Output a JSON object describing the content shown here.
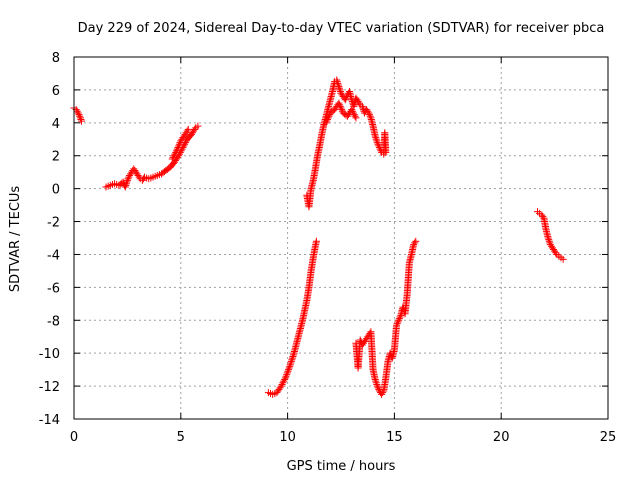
{
  "chart_data": {
    "type": "scatter",
    "title": "Day 229 of 2024, Sidereal Day-to-day VTEC variation (SDTVAR) for receiver pbca",
    "xlabel": "GPS time / hours",
    "ylabel": "SDTVAR / TECUs",
    "xlim": [
      0,
      25
    ],
    "ylim": [
      -14,
      8
    ],
    "xticks": [
      0,
      5,
      10,
      15,
      20,
      25
    ],
    "yticks": [
      -14,
      -12,
      -10,
      -8,
      -6,
      -4,
      -2,
      0,
      2,
      4,
      6,
      8
    ],
    "grid": true,
    "marker": "+",
    "marker_color": "#ff0000",
    "series": [
      {
        "name": "seg-0-1",
        "points": [
          [
            0.0,
            4.9
          ],
          [
            0.1,
            4.8
          ],
          [
            0.2,
            4.6
          ],
          [
            0.3,
            4.3
          ],
          [
            0.35,
            4.1
          ]
        ]
      },
      {
        "name": "seg-1.5-6",
        "points": [
          [
            1.5,
            0.1
          ],
          [
            1.7,
            0.2
          ],
          [
            1.9,
            0.3
          ],
          [
            2.1,
            0.2
          ],
          [
            2.3,
            0.4
          ],
          [
            2.4,
            0.1
          ],
          [
            2.5,
            0.5
          ],
          [
            2.6,
            0.8
          ],
          [
            2.7,
            1.0
          ],
          [
            2.8,
            1.2
          ],
          [
            2.9,
            1.0
          ],
          [
            3.0,
            0.8
          ],
          [
            3.1,
            0.6
          ],
          [
            3.2,
            0.5
          ],
          [
            3.3,
            0.7
          ],
          [
            3.5,
            0.6
          ],
          [
            3.7,
            0.7
          ],
          [
            3.9,
            0.8
          ],
          [
            4.1,
            0.9
          ],
          [
            4.3,
            1.1
          ],
          [
            4.5,
            1.3
          ],
          [
            4.7,
            1.6
          ],
          [
            4.9,
            2.0
          ],
          [
            5.1,
            2.5
          ],
          [
            5.3,
            3.0
          ],
          [
            5.5,
            3.3
          ],
          [
            5.7,
            3.7
          ],
          [
            5.8,
            3.8
          ]
        ]
      },
      {
        "name": "seg-1.5-6-upper",
        "points": [
          [
            4.6,
            1.8
          ],
          [
            4.8,
            2.3
          ],
          [
            5.0,
            2.9
          ],
          [
            5.2,
            3.3
          ],
          [
            5.35,
            3.6
          ]
        ]
      },
      {
        "name": "seg-9-11.5",
        "points": [
          [
            9.1,
            -12.4
          ],
          [
            9.3,
            -12.5
          ],
          [
            9.5,
            -12.4
          ],
          [
            9.7,
            -12.0
          ],
          [
            9.9,
            -11.5
          ],
          [
            10.1,
            -10.8
          ],
          [
            10.3,
            -10.0
          ],
          [
            10.5,
            -9.0
          ],
          [
            10.7,
            -8.0
          ],
          [
            10.9,
            -6.8
          ],
          [
            11.0,
            -6.0
          ],
          [
            11.1,
            -5.0
          ],
          [
            11.2,
            -4.2
          ],
          [
            11.3,
            -3.5
          ],
          [
            11.35,
            -3.2
          ]
        ]
      },
      {
        "name": "seg-10.8-14.6-upper",
        "points": [
          [
            10.9,
            -0.4
          ],
          [
            11.0,
            -1.1
          ],
          [
            11.1,
            0.0
          ],
          [
            11.2,
            0.5
          ],
          [
            11.3,
            1.2
          ],
          [
            11.4,
            2.0
          ],
          [
            11.5,
            2.6
          ],
          [
            11.6,
            3.3
          ],
          [
            11.7,
            3.9
          ],
          [
            11.8,
            4.4
          ],
          [
            11.9,
            4.9
          ],
          [
            12.0,
            5.4
          ],
          [
            12.1,
            5.9
          ],
          [
            12.2,
            6.5
          ],
          [
            12.3,
            6.6
          ],
          [
            12.4,
            6.2
          ],
          [
            12.5,
            5.8
          ],
          [
            12.6,
            5.6
          ],
          [
            12.7,
            5.4
          ],
          [
            12.8,
            5.7
          ],
          [
            12.9,
            5.9
          ],
          [
            13.0,
            5.4
          ],
          [
            13.1,
            5.0
          ],
          [
            13.2,
            5.5
          ],
          [
            13.3,
            5.3
          ],
          [
            13.4,
            5.1
          ],
          [
            13.5,
            5.0
          ],
          [
            13.6,
            4.6
          ],
          [
            13.7,
            4.8
          ],
          [
            13.8,
            4.6
          ],
          [
            13.9,
            4.3
          ],
          [
            14.0,
            3.8
          ],
          [
            14.1,
            3.2
          ],
          [
            14.2,
            2.8
          ],
          [
            14.3,
            2.5
          ],
          [
            14.4,
            2.2
          ],
          [
            14.5,
            2.1
          ],
          [
            14.55,
            3.4
          ],
          [
            14.6,
            2.2
          ]
        ]
      },
      {
        "name": "seg-11.8-13.2-lower",
        "points": [
          [
            11.8,
            4.0
          ],
          [
            12.0,
            4.6
          ],
          [
            12.2,
            4.8
          ],
          [
            12.4,
            5.2
          ],
          [
            12.6,
            4.6
          ],
          [
            12.8,
            4.4
          ],
          [
            13.0,
            4.8
          ],
          [
            13.2,
            4.3
          ]
        ]
      },
      {
        "name": "seg-13.2-16",
        "points": [
          [
            13.2,
            -9.4
          ],
          [
            13.3,
            -10.9
          ],
          [
            13.4,
            -9.2
          ],
          [
            13.5,
            -9.5
          ],
          [
            13.7,
            -9.1
          ],
          [
            13.9,
            -8.7
          ],
          [
            14.0,
            -11.0
          ],
          [
            14.1,
            -11.6
          ],
          [
            14.2,
            -12.0
          ],
          [
            14.3,
            -12.3
          ],
          [
            14.4,
            -12.5
          ],
          [
            14.5,
            -12.3
          ],
          [
            14.6,
            -11.5
          ],
          [
            14.7,
            -10.5
          ],
          [
            14.8,
            -10.0
          ],
          [
            14.9,
            -10.3
          ],
          [
            15.0,
            -9.8
          ],
          [
            15.1,
            -8.3
          ],
          [
            15.2,
            -8.0
          ],
          [
            15.3,
            -7.7
          ],
          [
            15.4,
            -7.2
          ],
          [
            15.5,
            -7.6
          ],
          [
            15.6,
            -6.4
          ],
          [
            15.7,
            -4.5
          ],
          [
            15.8,
            -4.0
          ],
          [
            15.9,
            -3.4
          ],
          [
            16.0,
            -3.2
          ]
        ]
      },
      {
        "name": "seg-21.7-23",
        "points": [
          [
            21.7,
            -1.4
          ],
          [
            21.8,
            -1.5
          ],
          [
            21.9,
            -1.6
          ],
          [
            22.0,
            -1.8
          ],
          [
            22.1,
            -2.5
          ],
          [
            22.2,
            -3.0
          ],
          [
            22.3,
            -3.4
          ],
          [
            22.4,
            -3.6
          ],
          [
            22.5,
            -3.8
          ],
          [
            22.6,
            -4.0
          ],
          [
            22.7,
            -4.1
          ],
          [
            22.8,
            -4.2
          ],
          [
            22.9,
            -4.3
          ]
        ]
      }
    ]
  }
}
